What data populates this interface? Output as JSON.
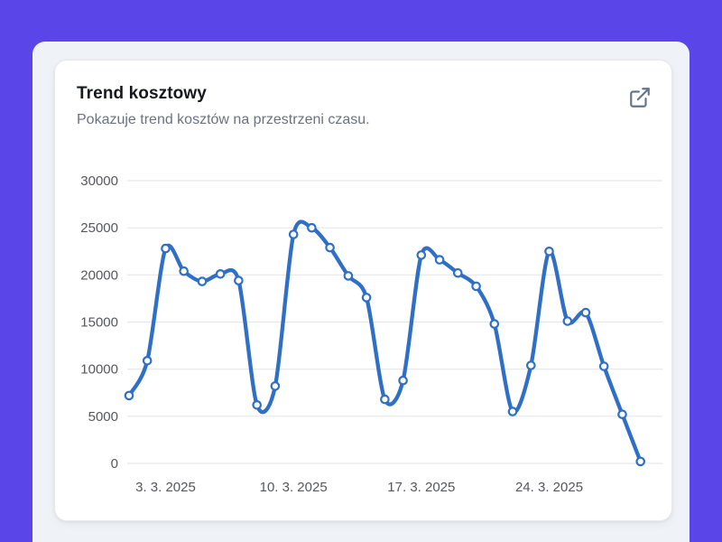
{
  "colors": {
    "app_background": "#5A46E8",
    "surface": "#EFF2F6",
    "card_background": "#FFFFFF",
    "line": "#2F6FC5",
    "grid": "#E6E7EA",
    "tick_text": "#56575C",
    "icon": "#64748B"
  },
  "card": {
    "title": "Trend kosztowy",
    "subtitle": "Pokazuje trend kosztów na przestrzeni czasu.",
    "action_icon": "external-link-icon"
  },
  "chart_data": {
    "type": "line",
    "title": "Trend kosztowy",
    "x": [
      "1. 3. 2025",
      "2. 3. 2025",
      "3. 3. 2025",
      "4. 3. 2025",
      "5. 3. 2025",
      "6. 3. 2025",
      "7. 3. 2025",
      "8. 3. 2025",
      "9. 3. 2025",
      "10. 3. 2025",
      "11. 3. 2025",
      "12. 3. 2025",
      "13. 3. 2025",
      "14. 3. 2025",
      "15. 3. 2025",
      "16. 3. 2025",
      "17. 3. 2025",
      "18. 3. 2025",
      "19. 3. 2025",
      "20. 3. 2025",
      "21. 3. 2025",
      "22. 3. 2025",
      "23. 3. 2025",
      "24. 3. 2025",
      "25. 3. 2025",
      "26. 3. 2025",
      "27. 3. 2025",
      "28. 3. 2025",
      "29. 3. 2025"
    ],
    "values": [
      7200,
      10900,
      22800,
      20400,
      19300,
      20100,
      19400,
      6200,
      8200,
      24300,
      25000,
      22900,
      19900,
      17600,
      6800,
      8800,
      22100,
      21600,
      20200,
      18800,
      14800,
      5500,
      10400,
      22500,
      15100,
      16000,
      10300,
      5200,
      200
    ],
    "x_tick_labels": [
      "3. 3. 2025",
      "10. 3. 2025",
      "17. 3. 2025",
      "24. 3. 2025"
    ],
    "x_tick_indices": [
      2,
      9,
      16,
      23
    ],
    "y_ticks": [
      0,
      5000,
      10000,
      15000,
      20000,
      25000,
      30000
    ],
    "ylim": [
      0,
      30000
    ],
    "xlabel": "",
    "ylabel": "",
    "grid": "horizontal",
    "legend": "none",
    "line_color": "#2F6FC5",
    "point_style": "hollow-circle"
  }
}
